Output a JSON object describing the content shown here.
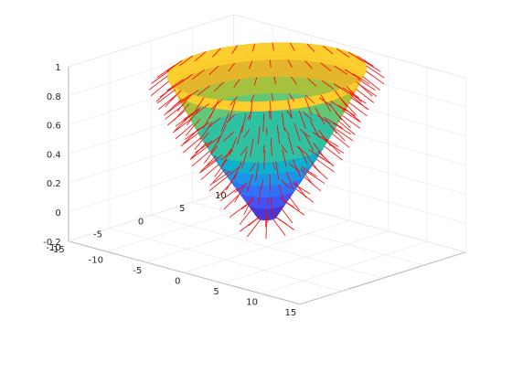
{
  "chart_data": {
    "type": "surface3d",
    "title": "",
    "xlabel": "",
    "ylabel": "",
    "zlabel": "",
    "xlim": [
      -15,
      15
    ],
    "ylim": [
      -10,
      10
    ],
    "zlim": [
      -0.2,
      1
    ],
    "x_ticks": [
      "-15",
      "-10",
      "-5",
      "0",
      "5",
      "10",
      "15"
    ],
    "y_ticks": [
      "-10",
      "-5",
      "0",
      "5",
      "10"
    ],
    "z_ticks": [
      "-0.2",
      "0",
      "0.2",
      "0.4",
      "0.6",
      "0.8",
      "1"
    ],
    "grid": true,
    "legend": "none",
    "surface": {
      "shape": "cone",
      "z_levels": [
        0.0,
        0.1,
        0.2,
        0.3,
        0.4,
        0.5,
        0.6,
        0.7,
        0.8,
        0.9,
        1.0
      ],
      "radius_at_z": [
        0.8,
        1.7,
        2.6,
        3.5,
        4.4,
        5.2,
        6.0,
        6.7,
        7.4,
        8.1,
        8.8
      ],
      "colormap": "parula",
      "band_colors": [
        "#3e26a8",
        "#4538d9",
        "#4254f5",
        "#2f73fb",
        "#1c95e8",
        "#0db1cf",
        "#2ec2a2",
        "#63c778",
        "#a6c13e",
        "#e4b62c",
        "#fcce2e"
      ]
    },
    "normals": {
      "color": "#ff0000",
      "style": "line",
      "description_note": ""
    }
  }
}
